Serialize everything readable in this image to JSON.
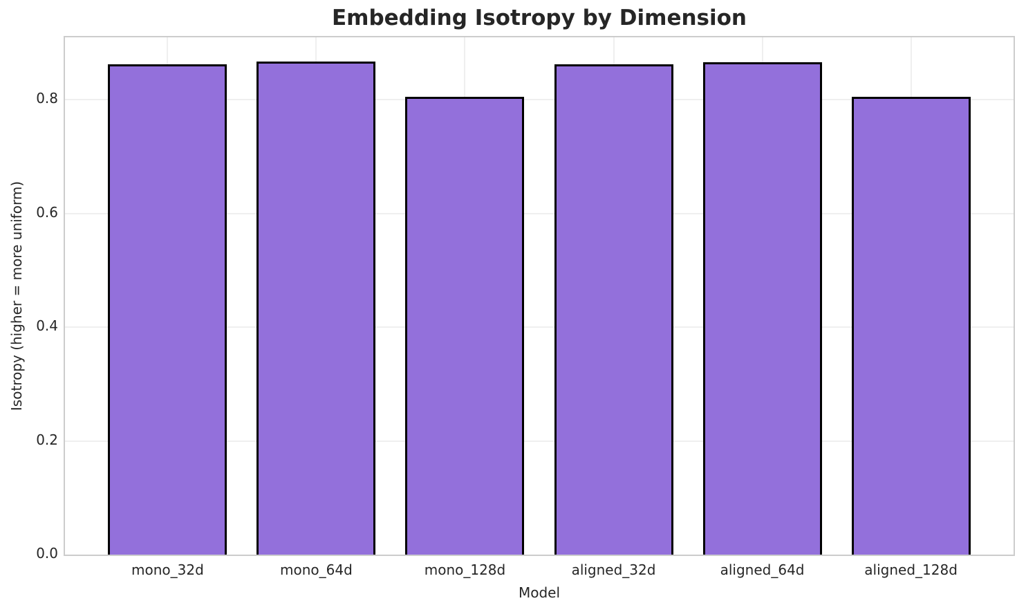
{
  "chart_data": {
    "type": "bar",
    "title": "Embedding Isotropy by Dimension",
    "xlabel": "Model",
    "ylabel": "Isotropy (higher = more uniform)",
    "categories": [
      "mono_32d",
      "mono_64d",
      "mono_128d",
      "aligned_32d",
      "aligned_64d",
      "aligned_128d"
    ],
    "values": [
      0.862,
      0.867,
      0.805,
      0.863,
      0.866,
      0.805
    ],
    "ylim": [
      0,
      0.91
    ],
    "yticks": [
      0.0,
      0.2,
      0.4,
      0.6,
      0.8
    ],
    "ytick_decimals": 1,
    "xlim": [
      -0.69,
      5.69
    ],
    "bar_width": 0.8,
    "grid": true,
    "legend": "none",
    "colors": {
      "bar_fill": "#9370DB",
      "bar_edge": "#000000",
      "grid_line": "#efefef",
      "spine": "#cccccc",
      "text": "#262626",
      "background": "#ffffff"
    }
  }
}
